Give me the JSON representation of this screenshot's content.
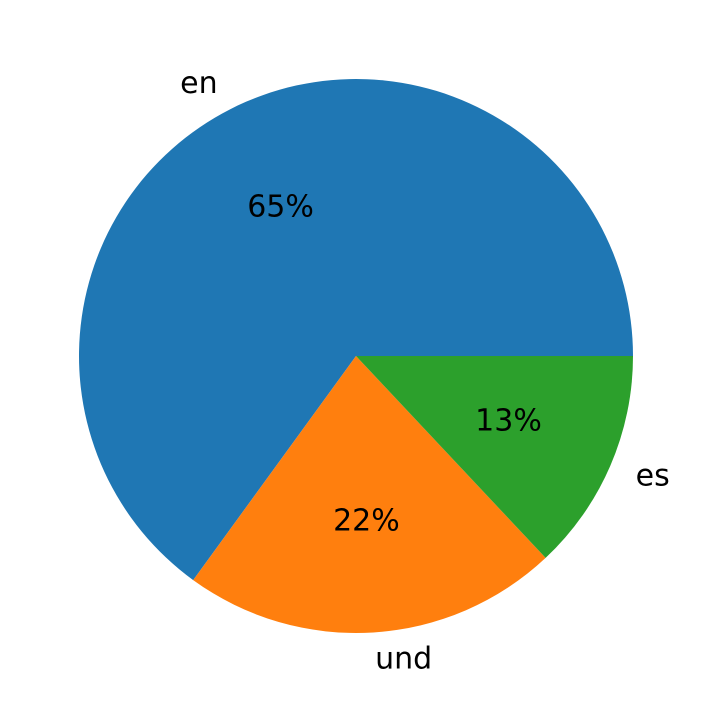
{
  "chart_data": {
    "type": "pie",
    "categories": [
      "en",
      "und",
      "es"
    ],
    "values": [
      65,
      22,
      13
    ],
    "value_labels": [
      "65%",
      "22%",
      "13%"
    ],
    "colors": [
      "#1f77b4",
      "#ff7f0e",
      "#2ca02c"
    ]
  }
}
